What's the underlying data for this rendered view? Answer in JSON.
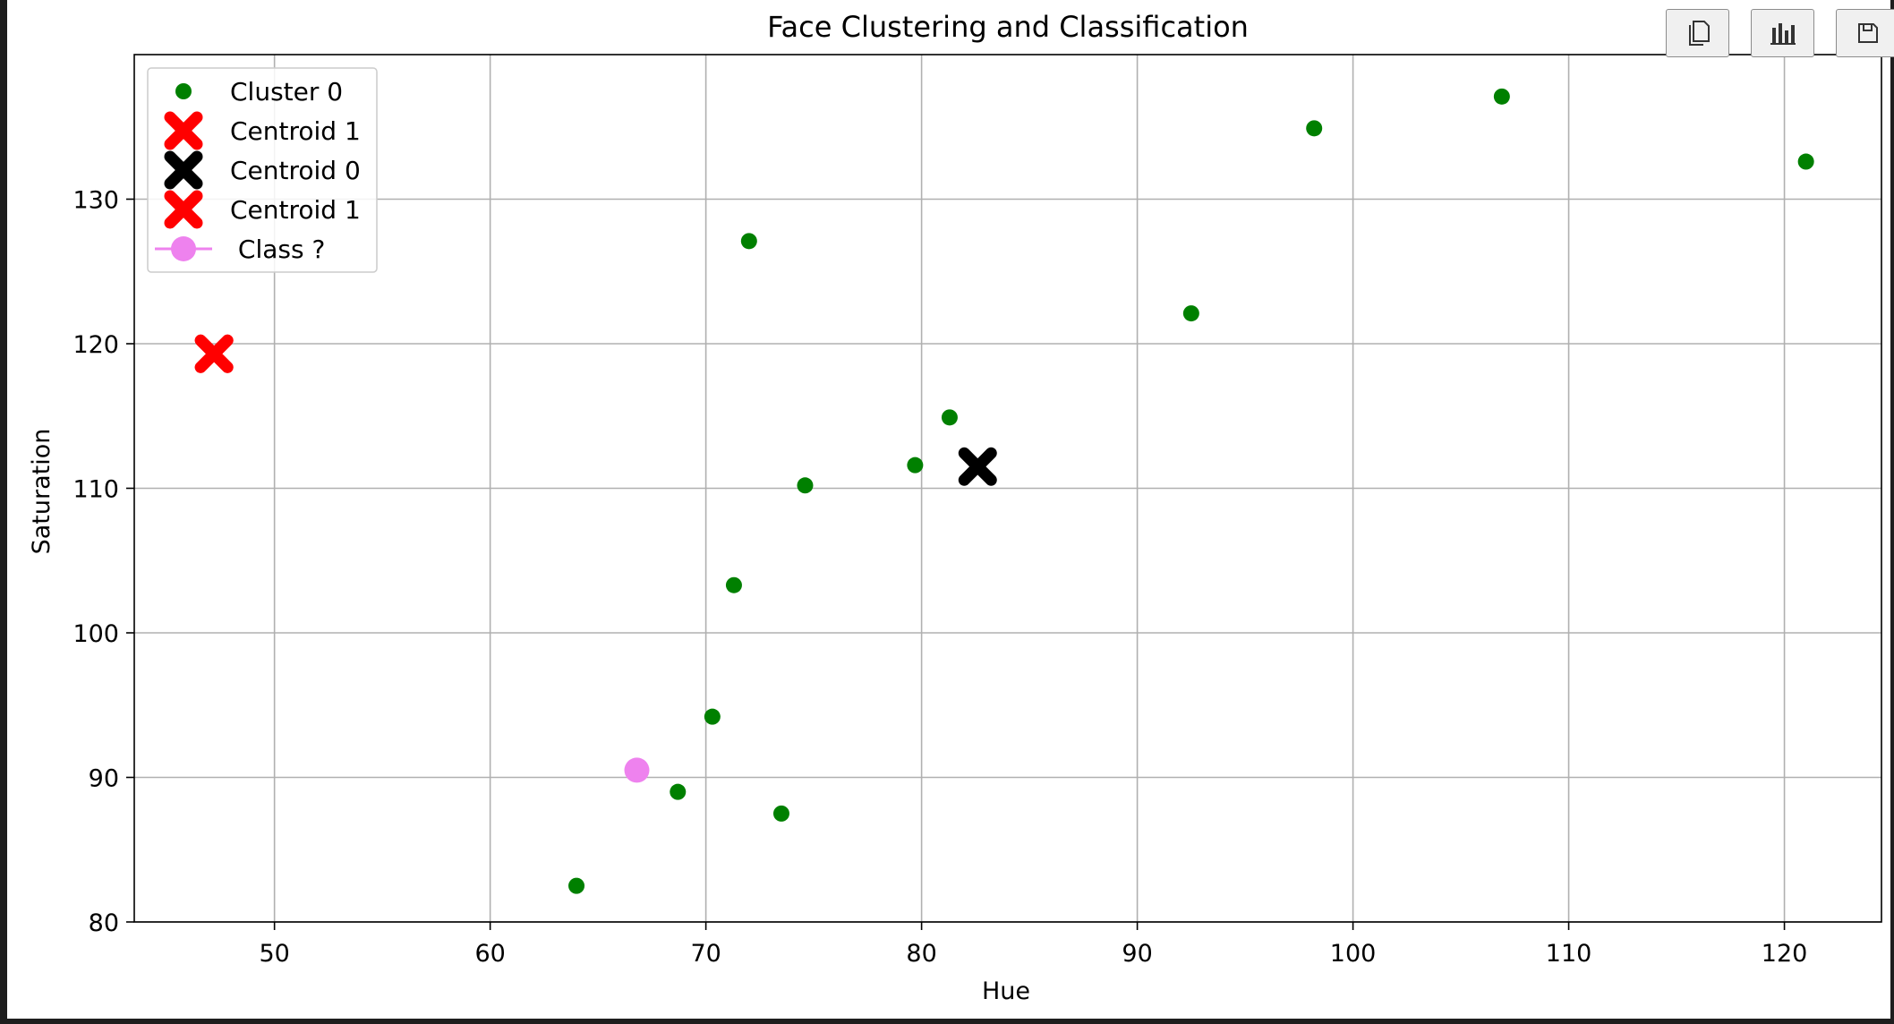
{
  "toolbar": {
    "buttons": [
      {
        "name": "copy-button",
        "icon": "copy-icon"
      },
      {
        "name": "chart-button",
        "icon": "bar-chart-icon"
      },
      {
        "name": "save-button",
        "icon": "save-icon"
      }
    ]
  },
  "chart_data": {
    "type": "scatter",
    "title": "Face Clustering and Classification",
    "xlabel": "Hue",
    "ylabel": "Saturation",
    "xlim": [
      43.5,
      124.5
    ],
    "ylim": [
      80,
      140
    ],
    "xticks": [
      50,
      60,
      70,
      80,
      90,
      100,
      110,
      120
    ],
    "yticks": [
      80,
      90,
      100,
      110,
      120,
      130
    ],
    "grid": true,
    "legend_position": "upper-left",
    "series": [
      {
        "name": "Cluster 0",
        "marker": "dot",
        "color": "#008000",
        "points": [
          {
            "x": 64.0,
            "y": 82.5
          },
          {
            "x": 68.7,
            "y": 89.0
          },
          {
            "x": 73.5,
            "y": 87.5
          },
          {
            "x": 70.3,
            "y": 94.2
          },
          {
            "x": 71.3,
            "y": 103.3
          },
          {
            "x": 74.6,
            "y": 110.2
          },
          {
            "x": 79.7,
            "y": 111.6
          },
          {
            "x": 81.3,
            "y": 114.9
          },
          {
            "x": 72.0,
            "y": 127.1
          },
          {
            "x": 92.5,
            "y": 122.1
          },
          {
            "x": 98.2,
            "y": 134.9
          },
          {
            "x": 106.9,
            "y": 137.1
          },
          {
            "x": 121.0,
            "y": 132.6
          }
        ]
      },
      {
        "name": "Centroid 1",
        "marker": "X",
        "color": "#ff0000",
        "points": [
          {
            "x": 47.2,
            "y": 119.3
          }
        ]
      },
      {
        "name": "Centroid 0",
        "marker": "X",
        "color": "#000000",
        "points": [
          {
            "x": 82.6,
            "y": 111.5
          }
        ]
      },
      {
        "name": "Centroid 1",
        "marker": "X",
        "color": "#ff0000",
        "points": [
          {
            "x": 47.2,
            "y": 119.3
          }
        ]
      },
      {
        "name": " Class ?",
        "marker": "circle-line",
        "color": "#ee82ee",
        "points": [
          {
            "x": 66.8,
            "y": 90.5
          }
        ]
      }
    ]
  }
}
